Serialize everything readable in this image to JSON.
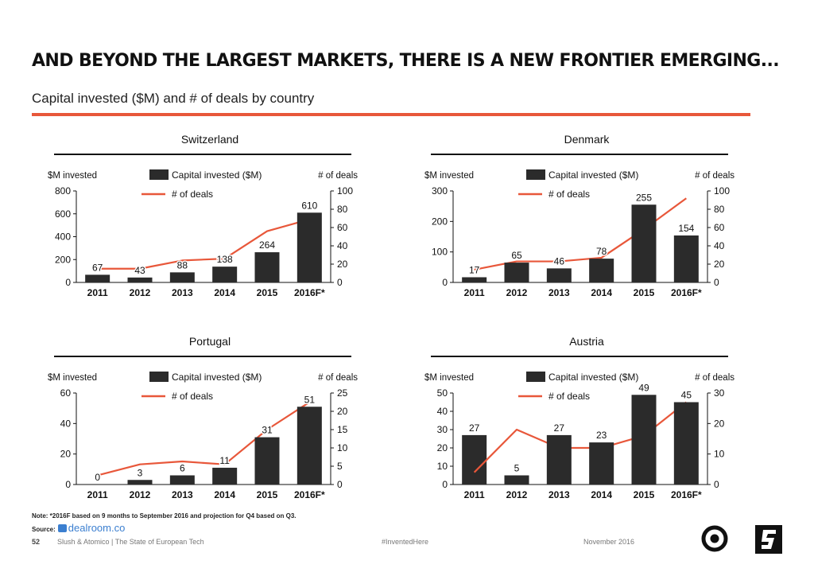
{
  "header": {
    "title": "AND BEYOND THE LARGEST MARKETS, THERE IS A NEW FRONTIER EMERGING...",
    "subtitle": "Capital invested ($M) and # of deals by country"
  },
  "colors": {
    "accent": "#e8573a",
    "bar": "#2b2b2b",
    "line": "#e8573a"
  },
  "legend": {
    "bar_label": "Capital invested ($M)",
    "line_label": "# of deals"
  },
  "axis_labels": {
    "left": "$M invested",
    "right": "# of deals"
  },
  "chart_data": [
    {
      "type": "bar",
      "title": "Switzerland",
      "categories": [
        "2011",
        "2012",
        "2013",
        "2014",
        "2015",
        "2016F*"
      ],
      "series": [
        {
          "name": "Capital invested ($M)",
          "kind": "bar",
          "axis": "left",
          "values": [
            67,
            43,
            88,
            138,
            264,
            610
          ]
        },
        {
          "name": "# of deals",
          "kind": "line",
          "axis": "right",
          "values": [
            15,
            15,
            24,
            26,
            56,
            69
          ]
        }
      ],
      "ylabel": "$M invested",
      "y2label": "# of deals",
      "ylim": [
        0,
        800
      ],
      "y2lim": [
        0,
        100
      ],
      "yticks": [
        "0",
        "200",
        "400",
        "600",
        "800"
      ],
      "y2ticks": [
        "0",
        "20",
        "40",
        "60",
        "80",
        "100"
      ]
    },
    {
      "type": "bar",
      "title": "Denmark",
      "categories": [
        "2011",
        "2012",
        "2013",
        "2014",
        "2015",
        "2016F*"
      ],
      "series": [
        {
          "name": "Capital invested ($M)",
          "kind": "bar",
          "axis": "left",
          "values": [
            17,
            65,
            46,
            78,
            255,
            154
          ]
        },
        {
          "name": "# of deals",
          "kind": "line",
          "axis": "right",
          "values": [
            14,
            23,
            23,
            27,
            58,
            92
          ]
        }
      ],
      "ylabel": "$M invested",
      "y2label": "# of deals",
      "ylim": [
        0,
        300
      ],
      "y2lim": [
        0,
        100
      ],
      "yticks": [
        "0",
        "100",
        "200",
        "300"
      ],
      "y2ticks": [
        "0",
        "20",
        "40",
        "60",
        "80",
        "100"
      ]
    },
    {
      "type": "bar",
      "title": "Portugal",
      "categories": [
        "2011",
        "2012",
        "2013",
        "2014",
        "2015",
        "2016F*"
      ],
      "series": [
        {
          "name": "Capital invested ($M)",
          "kind": "bar",
          "axis": "left",
          "values": [
            0,
            3,
            6,
            11,
            31,
            51
          ]
        },
        {
          "name": "# of deals",
          "kind": "line",
          "axis": "right",
          "values": [
            2.5,
            5.5,
            6.3,
            5.5,
            15,
            22.5
          ]
        }
      ],
      "ylabel": "$M invested",
      "y2label": "# of deals",
      "ylim": [
        0,
        60
      ],
      "y2lim": [
        0,
        25
      ],
      "yticks": [
        "0",
        "20",
        "40",
        "60"
      ],
      "y2ticks": [
        "0",
        "5",
        "10",
        "15",
        "20",
        "25"
      ]
    },
    {
      "type": "bar",
      "title": "Austria",
      "categories": [
        "2011",
        "2012",
        "2013",
        "2014",
        "2015",
        "2016F*"
      ],
      "series": [
        {
          "name": "Capital invested ($M)",
          "kind": "bar",
          "axis": "left",
          "values": [
            27,
            5,
            27,
            23,
            49,
            45
          ]
        },
        {
          "name": "# of deals",
          "kind": "line",
          "axis": "right",
          "values": [
            4,
            18,
            12,
            12,
            16,
            27
          ]
        }
      ],
      "ylabel": "$M invested",
      "y2label": "# of deals",
      "ylim": [
        0,
        50
      ],
      "y2lim": [
        0,
        30
      ],
      "yticks": [
        "0",
        "10",
        "20",
        "30",
        "40",
        "50"
      ],
      "y2ticks": [
        "0",
        "10",
        "20",
        "30"
      ]
    }
  ],
  "footer": {
    "note": "Note: *2016F based on 9 months to September 2016 and projection for Q4 based on Q3.",
    "source_label": "Source:",
    "source_name": "dealroom.co",
    "page_number": "52",
    "credit": "Slush & Atomico  |  The State of European Tech",
    "hashtag": "#InventedHere",
    "date": "November 2016"
  },
  "logos": [
    "slush-logo-icon",
    "atomico-logo-icon"
  ]
}
